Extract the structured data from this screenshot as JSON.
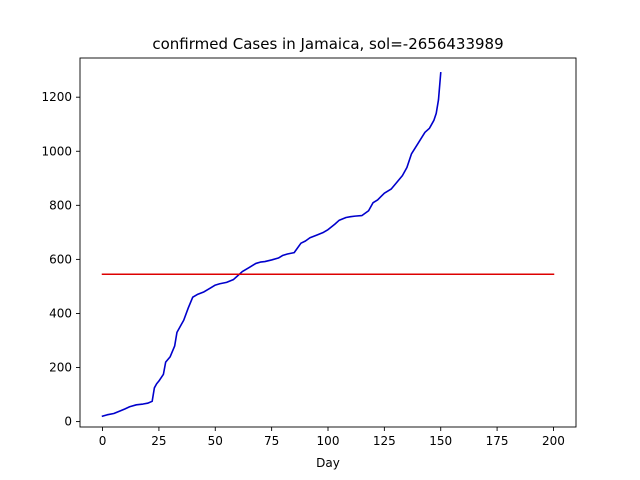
{
  "chart_data": {
    "type": "line",
    "title": "confirmed Cases in Jamaica, sol=-2656433989",
    "xlabel": "Day",
    "ylabel": "",
    "xlim": [
      -10,
      210
    ],
    "ylim": [
      -20,
      1345
    ],
    "xticks": [
      0,
      25,
      50,
      75,
      100,
      125,
      150,
      175,
      200
    ],
    "yticks": [
      0,
      200,
      400,
      600,
      800,
      1000,
      1200
    ],
    "grid": false,
    "series": [
      {
        "color": "#0000cc",
        "x": [
          0,
          2,
          5,
          8,
          10,
          12,
          15,
          18,
          20,
          22,
          23,
          24,
          25,
          27,
          28,
          30,
          32,
          33,
          35,
          36,
          38,
          40,
          42,
          45,
          48,
          50,
          52,
          55,
          58,
          60,
          62,
          65,
          68,
          70,
          72,
          75,
          78,
          80,
          82,
          85,
          88,
          90,
          92,
          95,
          98,
          100,
          103,
          105,
          108,
          110,
          112,
          115,
          118,
          120,
          122,
          125,
          128,
          130,
          133,
          135,
          137,
          140,
          143,
          145,
          147,
          148,
          149,
          150
        ],
        "y": [
          20,
          25,
          30,
          40,
          47,
          55,
          62,
          65,
          68,
          75,
          125,
          140,
          150,
          175,
          220,
          240,
          280,
          330,
          360,
          375,
          420,
          460,
          470,
          480,
          495,
          505,
          510,
          515,
          525,
          540,
          555,
          570,
          585,
          590,
          592,
          598,
          605,
          615,
          620,
          625,
          660,
          668,
          680,
          690,
          700,
          710,
          730,
          745,
          755,
          758,
          760,
          762,
          780,
          810,
          820,
          845,
          860,
          880,
          910,
          940,
          990,
          1030,
          1070,
          1085,
          1115,
          1140,
          1190,
          1290
        ]
      },
      {
        "color": "#dd0000",
        "x": [
          0,
          200
        ],
        "y": [
          545,
          545
        ]
      }
    ]
  }
}
